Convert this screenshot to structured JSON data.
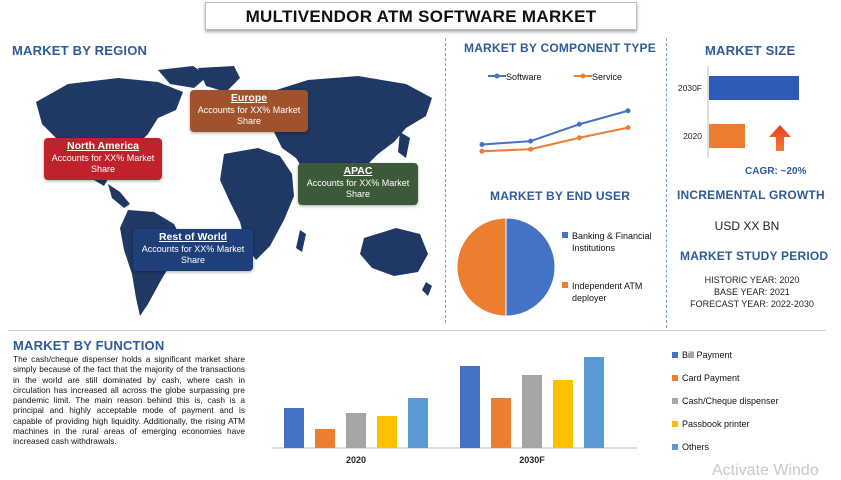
{
  "title": "MULTIVENDOR ATM SOFTWARE MARKET",
  "region": {
    "heading": "MARKET BY REGION",
    "boxes": [
      {
        "name": "Europe",
        "text": "Accounts for XX% Market Share",
        "color": "#a0522d"
      },
      {
        "name": "North America",
        "text": "Accounts for XX% Market Share",
        "color": "#c0222c"
      },
      {
        "name": "APAC",
        "text": "Accounts for XX% Market Share",
        "color": "#3c5a3a"
      },
      {
        "name": "Rest of World",
        "text": "Accounts for XX% Market Share",
        "color": "#1f3f7a"
      }
    ]
  },
  "component": {
    "heading": "MARKET BY COMPONENT TYPE",
    "legend": [
      "Software",
      "Service"
    ],
    "colors": [
      "#4472c4",
      "#ed7d31"
    ],
    "chart_data": {
      "type": "line",
      "series": [
        {
          "name": "Software",
          "values": [
            2,
            2.5,
            5,
            7
          ]
        },
        {
          "name": "Service",
          "values": [
            1,
            1.3,
            3,
            4.5
          ]
        }
      ]
    }
  },
  "size": {
    "heading": "MARKET SIZE",
    "cagr": "CAGR:  ~20%",
    "chart_data": {
      "type": "bar",
      "categories": [
        "2030F",
        "2020"
      ],
      "values": [
        100,
        40
      ],
      "colors": [
        "#2e5bb8",
        "#ed7d31"
      ]
    }
  },
  "enduser": {
    "heading": "MARKET BY END USER",
    "legend": [
      "Banking & Financial Institutions",
      "Independent ATM deployer"
    ],
    "colors": [
      "#4472c4",
      "#ed7d31"
    ],
    "chart_data": {
      "type": "pie",
      "categories": [
        "Banking & Financial Institutions",
        "Independent ATM deployer"
      ],
      "values": [
        50,
        50
      ]
    }
  },
  "growth": {
    "heading": "INCREMENTAL GROWTH",
    "value": "USD XX BN"
  },
  "study": {
    "heading": "MARKET STUDY PERIOD",
    "lines": [
      "HISTORIC YEAR: 2020",
      "BASE YEAR: 2021",
      "FORECAST YEAR: 2022-2030"
    ]
  },
  "function": {
    "heading": "MARKET BY FUNCTION",
    "text": "The cash/cheque dispenser holds a significant market share simply because of the fact that the majority of the transactions in the world are still dominated by cash, where cash in circulation has increased all across the globe surpassing pre pandemic limit. The main reason behind this is, cash is a principal and highly acceptable mode of payment and is capable of providing high liquidity. Additionally, the rising ATM machines in the rural areas of emerging economies have increased cash withdrawals.",
    "legend": [
      "Bill Payment",
      "Card Payment",
      "Cash/Cheque dispenser",
      "Passbook printer",
      "Others"
    ],
    "chart_data": {
      "type": "bar",
      "categories": [
        "2020",
        "2030F"
      ],
      "series": [
        {
          "name": "Bill Payment",
          "values": [
            40,
            82
          ],
          "color": "#4472c4"
        },
        {
          "name": "Card Payment",
          "values": [
            19,
            50
          ],
          "color": "#ed7d31"
        },
        {
          "name": "Cash/Cheque dispenser",
          "values": [
            35,
            73
          ],
          "color": "#a5a5a5"
        },
        {
          "name": "Passbook printer",
          "values": [
            32,
            68
          ],
          "color": "#ffc000"
        },
        {
          "name": "Others",
          "values": [
            50,
            91
          ],
          "color": "#5b9bd5"
        }
      ],
      "ylim": [
        0,
        100
      ]
    }
  },
  "watermark": "Activate Windo"
}
